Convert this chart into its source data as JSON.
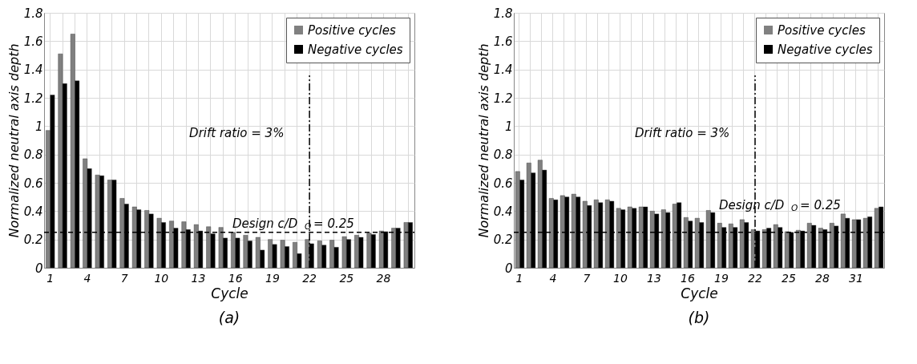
{
  "chart_data": [
    {
      "type": "bar",
      "title": "(a)",
      "xlabel": "Cycle",
      "ylabel": "Normalized neutral axis depth",
      "categories": [
        "1",
        null,
        null,
        "4",
        null,
        null,
        "7",
        null,
        null,
        "10",
        null,
        null,
        "13",
        null,
        null,
        "16",
        null,
        null,
        "19",
        null,
        null,
        "22",
        null,
        null,
        "25",
        null,
        null,
        "28",
        null,
        null
      ],
      "series": [
        {
          "name": "Positive cycles",
          "color": "#808080",
          "values": [
            0.97,
            1.51,
            1.65,
            0.77,
            0.655,
            0.62,
            0.49,
            0.43,
            0.405,
            0.35,
            0.33,
            0.325,
            0.305,
            0.29,
            0.285,
            0.25,
            0.23,
            0.215,
            0.2,
            0.195,
            0.18,
            0.2,
            0.19,
            0.195,
            0.22,
            0.23,
            0.245,
            0.26,
            0.28,
            0.32
          ]
        },
        {
          "name": "Negative cycles",
          "color": "#000000",
          "values": [
            1.22,
            1.3,
            1.32,
            0.7,
            0.65,
            0.62,
            0.45,
            0.41,
            0.38,
            0.32,
            0.28,
            0.27,
            0.26,
            0.24,
            0.21,
            0.21,
            0.19,
            0.125,
            0.165,
            0.15,
            0.1,
            0.17,
            0.16,
            0.145,
            0.2,
            0.215,
            0.235,
            0.255,
            0.28,
            0.32
          ]
        }
      ],
      "ylim": [
        0,
        1.8
      ],
      "yticks": [
        0,
        0.2,
        0.4,
        0.6,
        0.8,
        1,
        1.2,
        1.4,
        1.6,
        1.8
      ],
      "grid": true,
      "legend": "top right",
      "ref_lines": [
        {
          "axis": "y",
          "value": 0.25,
          "label": "Design c/D$_{O}$ = 0.25",
          "line_style": "dashed",
          "color": "#000000"
        },
        {
          "axis": "x",
          "value": "22",
          "label": "Drift ratio = 3%",
          "line_style": "dashdot",
          "color": "#000000"
        }
      ]
    },
    {
      "type": "bar",
      "title": "(b)",
      "xlabel": "Cycle",
      "ylabel": "Normalized neutral axis depth",
      "categories": [
        "1",
        null,
        null,
        "4",
        null,
        null,
        "7",
        null,
        null,
        "10",
        null,
        null,
        "13",
        null,
        null,
        "16",
        null,
        null,
        "19",
        null,
        null,
        "22",
        null,
        null,
        "25",
        null,
        null,
        "28",
        null,
        null,
        "31",
        null,
        null
      ],
      "series": [
        {
          "name": "Positive cycles",
          "color": "#808080",
          "values": [
            0.68,
            0.74,
            0.76,
            0.49,
            0.51,
            0.52,
            0.47,
            0.48,
            0.48,
            0.42,
            0.43,
            0.43,
            0.4,
            0.41,
            0.45,
            0.355,
            0.35,
            0.405,
            0.315,
            0.31,
            0.34,
            0.27,
            0.27,
            0.305,
            0.255,
            0.265,
            0.315,
            0.28,
            0.315,
            0.38,
            0.34,
            0.35,
            0.42
          ]
        },
        {
          "name": "Negative cycles",
          "color": "#000000",
          "values": [
            0.62,
            0.67,
            0.69,
            0.48,
            0.5,
            0.5,
            0.44,
            0.46,
            0.47,
            0.41,
            0.42,
            0.43,
            0.38,
            0.39,
            0.46,
            0.33,
            0.32,
            0.39,
            0.285,
            0.285,
            0.32,
            0.26,
            0.28,
            0.285,
            0.25,
            0.26,
            0.3,
            0.27,
            0.295,
            0.35,
            0.34,
            0.36,
            0.43
          ]
        }
      ],
      "ylim": [
        0,
        1.8
      ],
      "yticks": [
        0,
        0.2,
        0.4,
        0.6,
        0.8,
        1,
        1.2,
        1.4,
        1.6,
        1.8
      ],
      "grid": true,
      "legend": "top right",
      "ref_lines": [
        {
          "axis": "y",
          "value": 0.25,
          "label": "Design c/D$_{O}$ = 0.25",
          "line_style": "dashed",
          "color": "#000000"
        },
        {
          "axis": "x",
          "value": "22",
          "label": "Drift ratio = 3%",
          "line_style": "dashdot",
          "color": "#000000"
        }
      ]
    }
  ]
}
